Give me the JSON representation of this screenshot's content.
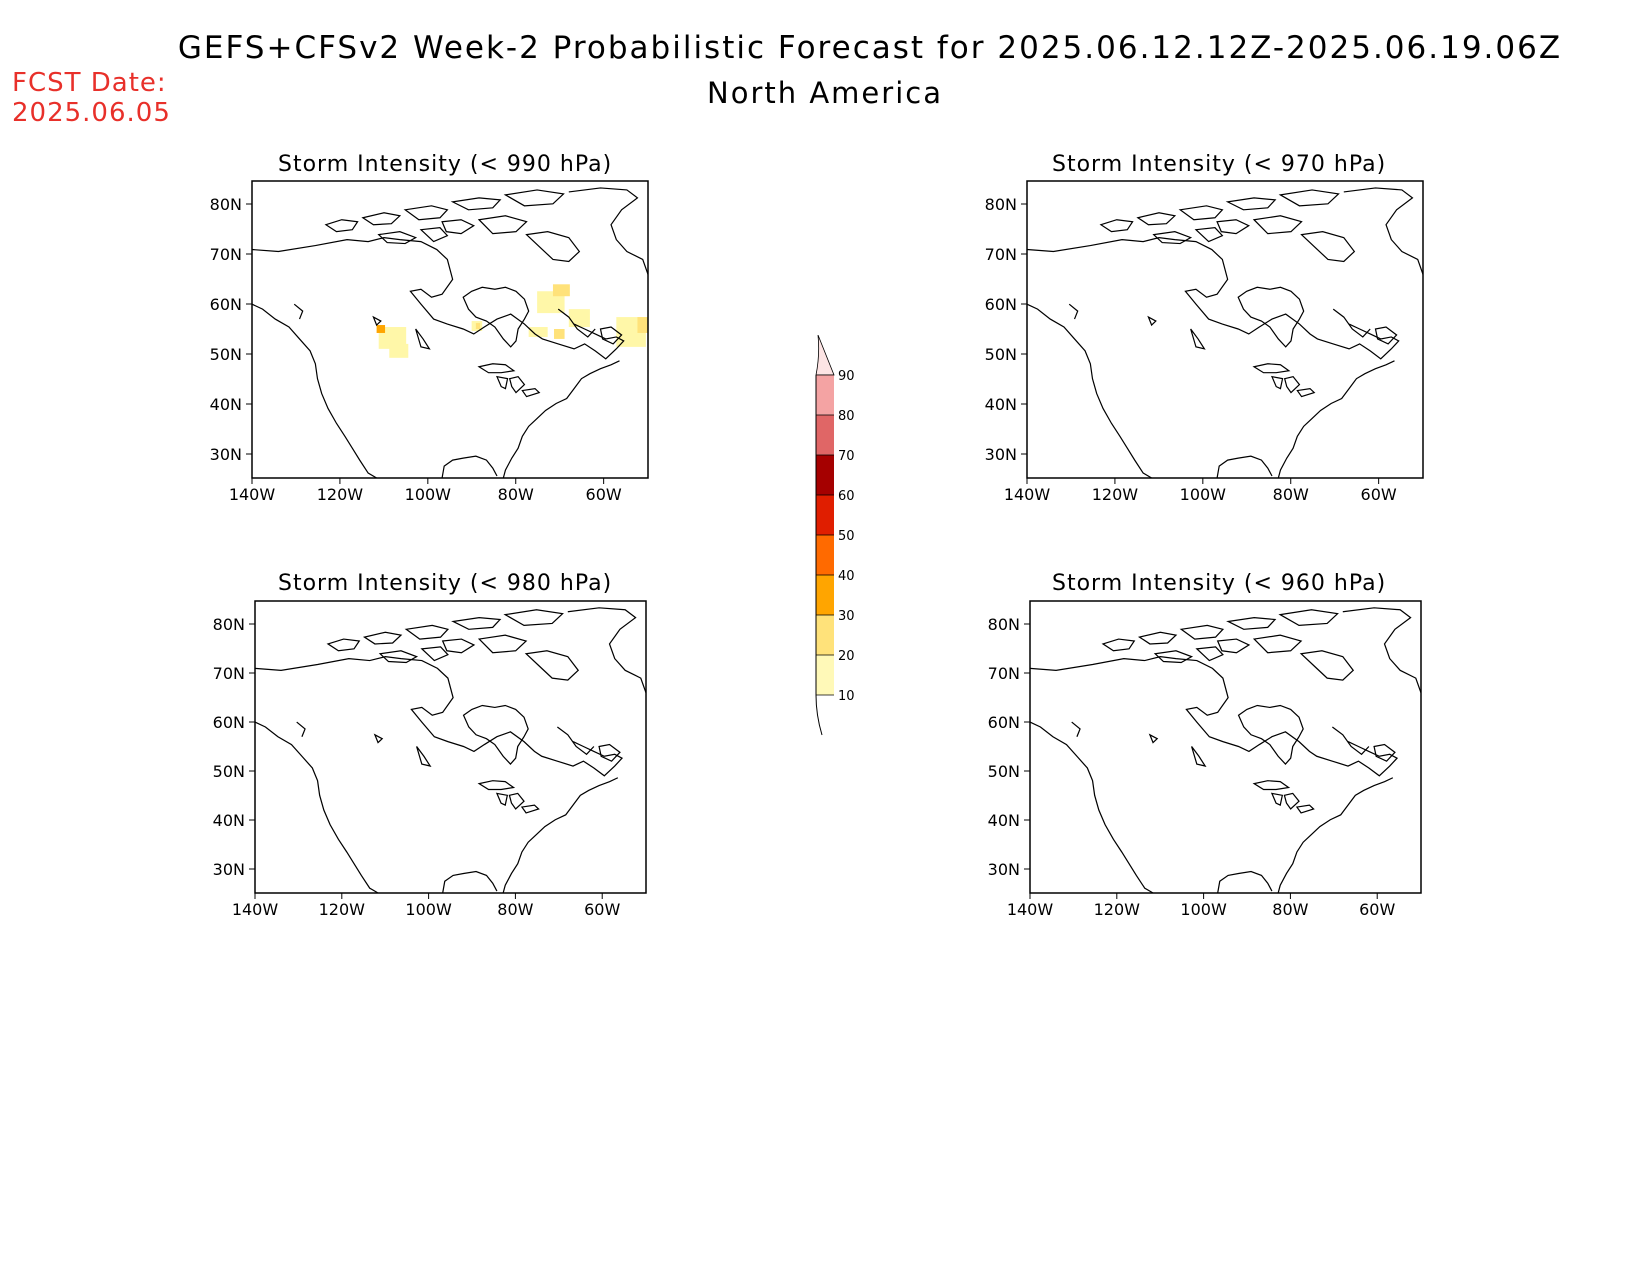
{
  "header": {
    "title": "GEFS+CFSv2 Week-2 Probabilistic Forecast for 2025.06.12.12Z-2025.06.19.06Z",
    "subtitle": "North America",
    "fcst_label": "FCST Date:",
    "fcst_date": "2025.06.05"
  },
  "axes": {
    "lat_ticks": [
      "80N",
      "70N",
      "60N",
      "50N",
      "40N",
      "30N"
    ],
    "lon_ticks": [
      "140W",
      "120W",
      "100W",
      "80W",
      "60W"
    ]
  },
  "panels": [
    {
      "title": "Storm Intensity (< 990 hPa)",
      "has_shading": true
    },
    {
      "title": "Storm Intensity (< 970 hPa)",
      "has_shading": false
    },
    {
      "title": "Storm Intensity (< 980 hPa)",
      "has_shading": false
    },
    {
      "title": "Storm Intensity (< 960 hPa)",
      "has_shading": false
    }
  ],
  "colorbar": {
    "levels": [
      "10",
      "20",
      "30",
      "40",
      "50",
      "60",
      "70",
      "80",
      "90"
    ],
    "colors": [
      "#fff9b8",
      "#ffe27a",
      "#ffa500",
      "#ff6a00",
      "#e01e00",
      "#a50000",
      "#e06666",
      "#f4a3a3",
      "#fde4e4"
    ]
  },
  "shading_colors": {
    "light": "#fff7a8",
    "mid": "#ffe27a",
    "orange": "#ffa500"
  }
}
